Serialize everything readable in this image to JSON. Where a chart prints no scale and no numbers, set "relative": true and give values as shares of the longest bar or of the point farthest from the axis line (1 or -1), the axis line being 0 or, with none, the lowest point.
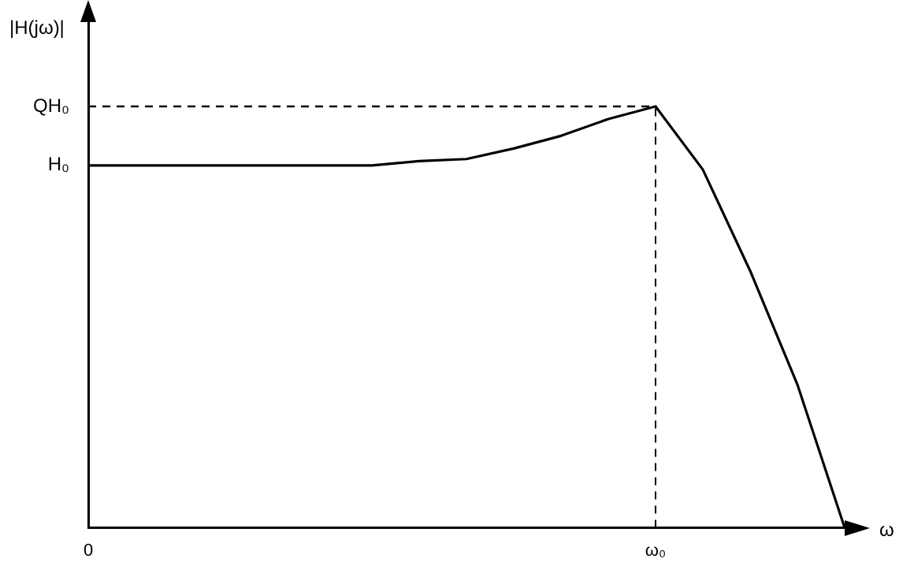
{
  "chart_data": {
    "type": "line",
    "xlabel": "ω",
    "ylabel": "|H(jω)|",
    "relative": true,
    "categories": [
      "0",
      null,
      null,
      null,
      null,
      null,
      null,
      null,
      null,
      null,
      null,
      null,
      "ω₀",
      null,
      null,
      null,
      null
    ],
    "grid": false,
    "legend": false,
    "marker": "none",
    "annotations": [
      {
        "text": "H₀",
        "x": "0",
        "y": 0.86
      }
    ],
    "ref_lines": [
      {
        "axis": "y",
        "value": 1,
        "label": "QH₀",
        "line_style": "dashed",
        "color": "#000000"
      },
      {
        "axis": "x",
        "value": "ω₀",
        "line_style": "dashed",
        "color": "#000000"
      }
    ],
    "series": [
      {
        "color": "#000000",
        "values": [
          0.86,
          0.86,
          0.86,
          0.86,
          0.86,
          0.86,
          0.86,
          0.87,
          0.875,
          0.9,
          0.93,
          0.97,
          1,
          0.85,
          0.61,
          0.34,
          0
        ]
      }
    ]
  }
}
